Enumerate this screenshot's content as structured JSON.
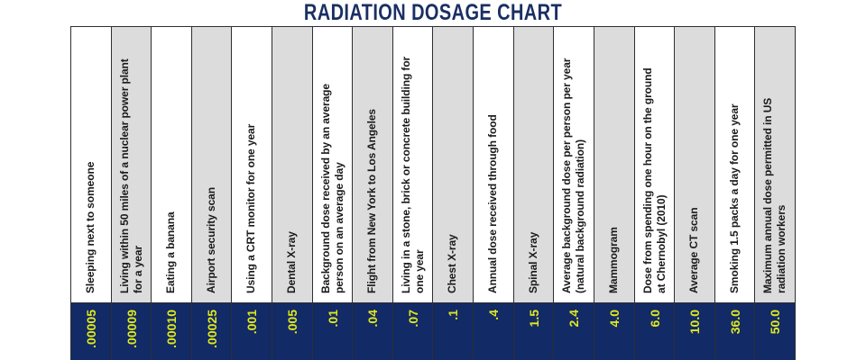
{
  "title": "RADIATION DOSAGE CHART",
  "colors": {
    "navy": "#122a66",
    "value_yellow": "#e0e81c",
    "column_gray": "#dcdcdc",
    "column_white": "#ffffff",
    "border": "#2e2e34",
    "title_navy": "#1a2f63",
    "label_black": "#1a1a1a"
  },
  "columns": [
    {
      "label": "Sleeping next to someone",
      "value": ".00005"
    },
    {
      "label": "Living within 50 miles of a nuclear power plant\nfor a year",
      "value": ".00009"
    },
    {
      "label": "Eating a banana",
      "value": ".00010"
    },
    {
      "label": "Airport security scan",
      "value": ".00025"
    },
    {
      "label": "Using a CRT monitor for one year",
      "value": ".001"
    },
    {
      "label": "Dental X-ray",
      "value": ".005"
    },
    {
      "label": "Background dose received by an average\nperson on an average day",
      "value": ".01"
    },
    {
      "label": "Flight from New York to Los Angeles",
      "value": ".04"
    },
    {
      "label": "Living in a stone, brick or concrete building for\none year",
      "value": ".07"
    },
    {
      "label": "Chest X-ray",
      "value": ".1"
    },
    {
      "label": "Annual dose received through food",
      "value": ".4"
    },
    {
      "label": "Spinal X-ray",
      "value": "1.5"
    },
    {
      "label": "Average background dose per person per year\n(natural background radiation)",
      "value": "2.4"
    },
    {
      "label": "Mammogram",
      "value": "4.0"
    },
    {
      "label": "Dose from spending one hour on the ground\nat Chernobyl (2010)",
      "value": "6.0"
    },
    {
      "label": "Average CT scan",
      "value": "10.0"
    },
    {
      "label": "Smoking 1.5 packs a day for one year",
      "value": "36.0"
    },
    {
      "label": "Maximum annual dose permitted in US\nradiation workers",
      "value": "50.0"
    }
  ],
  "chart_data": {
    "type": "table",
    "title": "RADIATION DOSAGE CHART",
    "categories": [
      "Sleeping next to someone",
      "Living within 50 miles of a nuclear power plant for a year",
      "Eating a banana",
      "Airport security scan",
      "Using a CRT monitor for one year",
      "Dental X-ray",
      "Background dose received by an average person on an average day",
      "Flight from New York to Los Angeles",
      "Living in a stone, brick or concrete building for one year",
      "Chest X-ray",
      "Annual dose received through food",
      "Spinal X-ray",
      "Average background dose per person per year (natural background radiation)",
      "Mammogram",
      "Dose from spending one hour on the ground at Chernobyl (2010)",
      "Average CT scan",
      "Smoking 1.5 packs a day for one year",
      "Maximum annual dose permitted in US radiation workers"
    ],
    "values": [
      5e-05,
      9e-05,
      0.0001,
      0.00025,
      0.001,
      0.005,
      0.01,
      0.04,
      0.07,
      0.1,
      0.4,
      1.5,
      2.4,
      4.0,
      6.0,
      10.0,
      36.0,
      50.0
    ],
    "value_labels": [
      ".00005",
      ".00009",
      ".00010",
      ".00025",
      ".001",
      ".005",
      ".01",
      ".04",
      ".07",
      ".1",
      ".4",
      "1.5",
      "2.4",
      "4.0",
      "6.0",
      "10.0",
      "36.0",
      "50.0"
    ],
    "legend_position": "none",
    "grid": false
  }
}
